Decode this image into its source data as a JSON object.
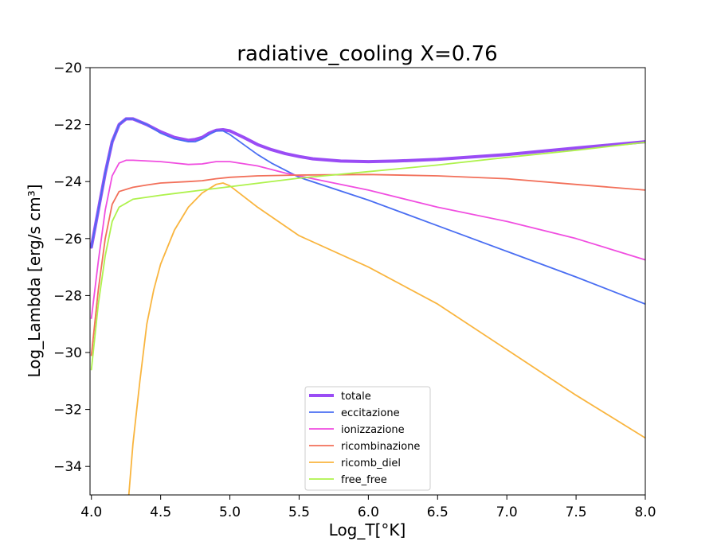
{
  "chart_data": {
    "type": "line",
    "title": "radiative_cooling X=0.76",
    "xlabel": "Log_T[°K]",
    "ylabel": "Log_Lambda [erg/s cm³]",
    "xlim": [
      3.99,
      8.0
    ],
    "ylim": [
      -35,
      -20
    ],
    "xticks": [
      4.0,
      4.5,
      5.0,
      5.5,
      6.0,
      6.5,
      7.0,
      7.5,
      8.0
    ],
    "xtick_labels": [
      "4.0",
      "4.5",
      "5.0",
      "5.5",
      "6.0",
      "6.5",
      "7.0",
      "7.5",
      "8.0"
    ],
    "yticks": [
      -34,
      -32,
      -30,
      -28,
      -26,
      -24,
      -22,
      -20
    ],
    "ytick_labels": [
      "−34",
      "−32",
      "−30",
      "−28",
      "−26",
      "−24",
      "−22",
      "−20"
    ],
    "grid": false,
    "legend_position": "lower-center",
    "series": [
      {
        "name": "totale",
        "color": "#9a4cf5",
        "width": "thick",
        "points": [
          [
            4.0,
            -26.3
          ],
          [
            4.05,
            -25.0
          ],
          [
            4.1,
            -23.7
          ],
          [
            4.15,
            -22.6
          ],
          [
            4.2,
            -22.0
          ],
          [
            4.25,
            -21.8
          ],
          [
            4.3,
            -21.8
          ],
          [
            4.4,
            -22.0
          ],
          [
            4.5,
            -22.25
          ],
          [
            4.6,
            -22.45
          ],
          [
            4.7,
            -22.55
          ],
          [
            4.75,
            -22.52
          ],
          [
            4.8,
            -22.45
          ],
          [
            4.85,
            -22.3
          ],
          [
            4.9,
            -22.2
          ],
          [
            4.95,
            -22.18
          ],
          [
            5.0,
            -22.22
          ],
          [
            5.1,
            -22.45
          ],
          [
            5.2,
            -22.7
          ],
          [
            5.3,
            -22.88
          ],
          [
            5.4,
            -23.02
          ],
          [
            5.5,
            -23.12
          ],
          [
            5.6,
            -23.2
          ],
          [
            5.8,
            -23.28
          ],
          [
            6.0,
            -23.3
          ],
          [
            6.2,
            -23.28
          ],
          [
            6.5,
            -23.22
          ],
          [
            7.0,
            -23.05
          ],
          [
            7.5,
            -22.82
          ],
          [
            8.0,
            -22.6
          ]
        ]
      },
      {
        "name": "eccitazione",
        "color": "#4a6ef2",
        "width": "thin",
        "points": [
          [
            4.0,
            -26.3
          ],
          [
            4.05,
            -25.0
          ],
          [
            4.1,
            -23.7
          ],
          [
            4.15,
            -22.6
          ],
          [
            4.2,
            -22.0
          ],
          [
            4.25,
            -21.8
          ],
          [
            4.3,
            -21.8
          ],
          [
            4.4,
            -22.0
          ],
          [
            4.5,
            -22.3
          ],
          [
            4.6,
            -22.5
          ],
          [
            4.7,
            -22.6
          ],
          [
            4.75,
            -22.6
          ],
          [
            4.8,
            -22.5
          ],
          [
            4.85,
            -22.35
          ],
          [
            4.9,
            -22.22
          ],
          [
            4.95,
            -22.22
          ],
          [
            5.0,
            -22.35
          ],
          [
            5.1,
            -22.7
          ],
          [
            5.2,
            -23.05
          ],
          [
            5.3,
            -23.35
          ],
          [
            5.5,
            -23.85
          ],
          [
            6.0,
            -24.65
          ],
          [
            6.5,
            -25.55
          ],
          [
            7.0,
            -26.45
          ],
          [
            7.5,
            -27.35
          ],
          [
            8.0,
            -28.3
          ]
        ]
      },
      {
        "name": "ionizzazione",
        "color": "#f04ee0",
        "width": "thin",
        "points": [
          [
            4.0,
            -28.8
          ],
          [
            4.05,
            -26.8
          ],
          [
            4.1,
            -25.0
          ],
          [
            4.15,
            -23.8
          ],
          [
            4.2,
            -23.35
          ],
          [
            4.25,
            -23.25
          ],
          [
            4.3,
            -23.25
          ],
          [
            4.5,
            -23.3
          ],
          [
            4.6,
            -23.35
          ],
          [
            4.7,
            -23.4
          ],
          [
            4.8,
            -23.38
          ],
          [
            4.9,
            -23.3
          ],
          [
            5.0,
            -23.3
          ],
          [
            5.2,
            -23.45
          ],
          [
            5.4,
            -23.7
          ],
          [
            5.6,
            -23.9
          ],
          [
            5.8,
            -24.1
          ],
          [
            6.0,
            -24.3
          ],
          [
            6.5,
            -24.9
          ],
          [
            7.0,
            -25.4
          ],
          [
            7.5,
            -26.0
          ],
          [
            8.0,
            -26.75
          ]
        ]
      },
      {
        "name": "ricombinazione",
        "color": "#f2705a",
        "width": "thin",
        "points": [
          [
            4.0,
            -30.1
          ],
          [
            4.05,
            -27.8
          ],
          [
            4.1,
            -26.0
          ],
          [
            4.15,
            -24.8
          ],
          [
            4.2,
            -24.35
          ],
          [
            4.3,
            -24.2
          ],
          [
            4.4,
            -24.12
          ],
          [
            4.5,
            -24.05
          ],
          [
            4.7,
            -24.0
          ],
          [
            4.8,
            -23.97
          ],
          [
            4.9,
            -23.9
          ],
          [
            5.0,
            -23.85
          ],
          [
            5.2,
            -23.8
          ],
          [
            5.5,
            -23.77
          ],
          [
            6.0,
            -23.75
          ],
          [
            6.5,
            -23.8
          ],
          [
            7.0,
            -23.9
          ],
          [
            7.5,
            -24.1
          ],
          [
            8.0,
            -24.3
          ]
        ]
      },
      {
        "name": "ricomb_diel",
        "color": "#f9b53f",
        "width": "thin",
        "points": [
          [
            4.27,
            -35.0
          ],
          [
            4.3,
            -33.2
          ],
          [
            4.35,
            -31.0
          ],
          [
            4.4,
            -29.0
          ],
          [
            4.45,
            -27.8
          ],
          [
            4.5,
            -26.9
          ],
          [
            4.6,
            -25.7
          ],
          [
            4.7,
            -24.9
          ],
          [
            4.8,
            -24.4
          ],
          [
            4.9,
            -24.1
          ],
          [
            4.95,
            -24.05
          ],
          [
            5.0,
            -24.15
          ],
          [
            5.2,
            -24.9
          ],
          [
            5.5,
            -25.9
          ],
          [
            6.0,
            -27.0
          ],
          [
            6.5,
            -28.3
          ],
          [
            7.0,
            -29.9
          ],
          [
            7.5,
            -31.5
          ],
          [
            8.0,
            -33.0
          ]
        ]
      },
      {
        "name": "free_free",
        "color": "#aef24c",
        "width": "thin",
        "points": [
          [
            4.0,
            -30.6
          ],
          [
            4.05,
            -28.3
          ],
          [
            4.1,
            -26.6
          ],
          [
            4.15,
            -25.4
          ],
          [
            4.2,
            -24.9
          ],
          [
            4.3,
            -24.62
          ],
          [
            4.4,
            -24.55
          ],
          [
            4.5,
            -24.48
          ],
          [
            4.6,
            -24.42
          ],
          [
            4.8,
            -24.3
          ],
          [
            5.0,
            -24.18
          ],
          [
            5.5,
            -23.88
          ],
          [
            6.0,
            -23.65
          ],
          [
            6.5,
            -23.42
          ],
          [
            7.0,
            -23.15
          ],
          [
            7.5,
            -22.9
          ],
          [
            8.0,
            -22.62
          ]
        ]
      }
    ]
  }
}
